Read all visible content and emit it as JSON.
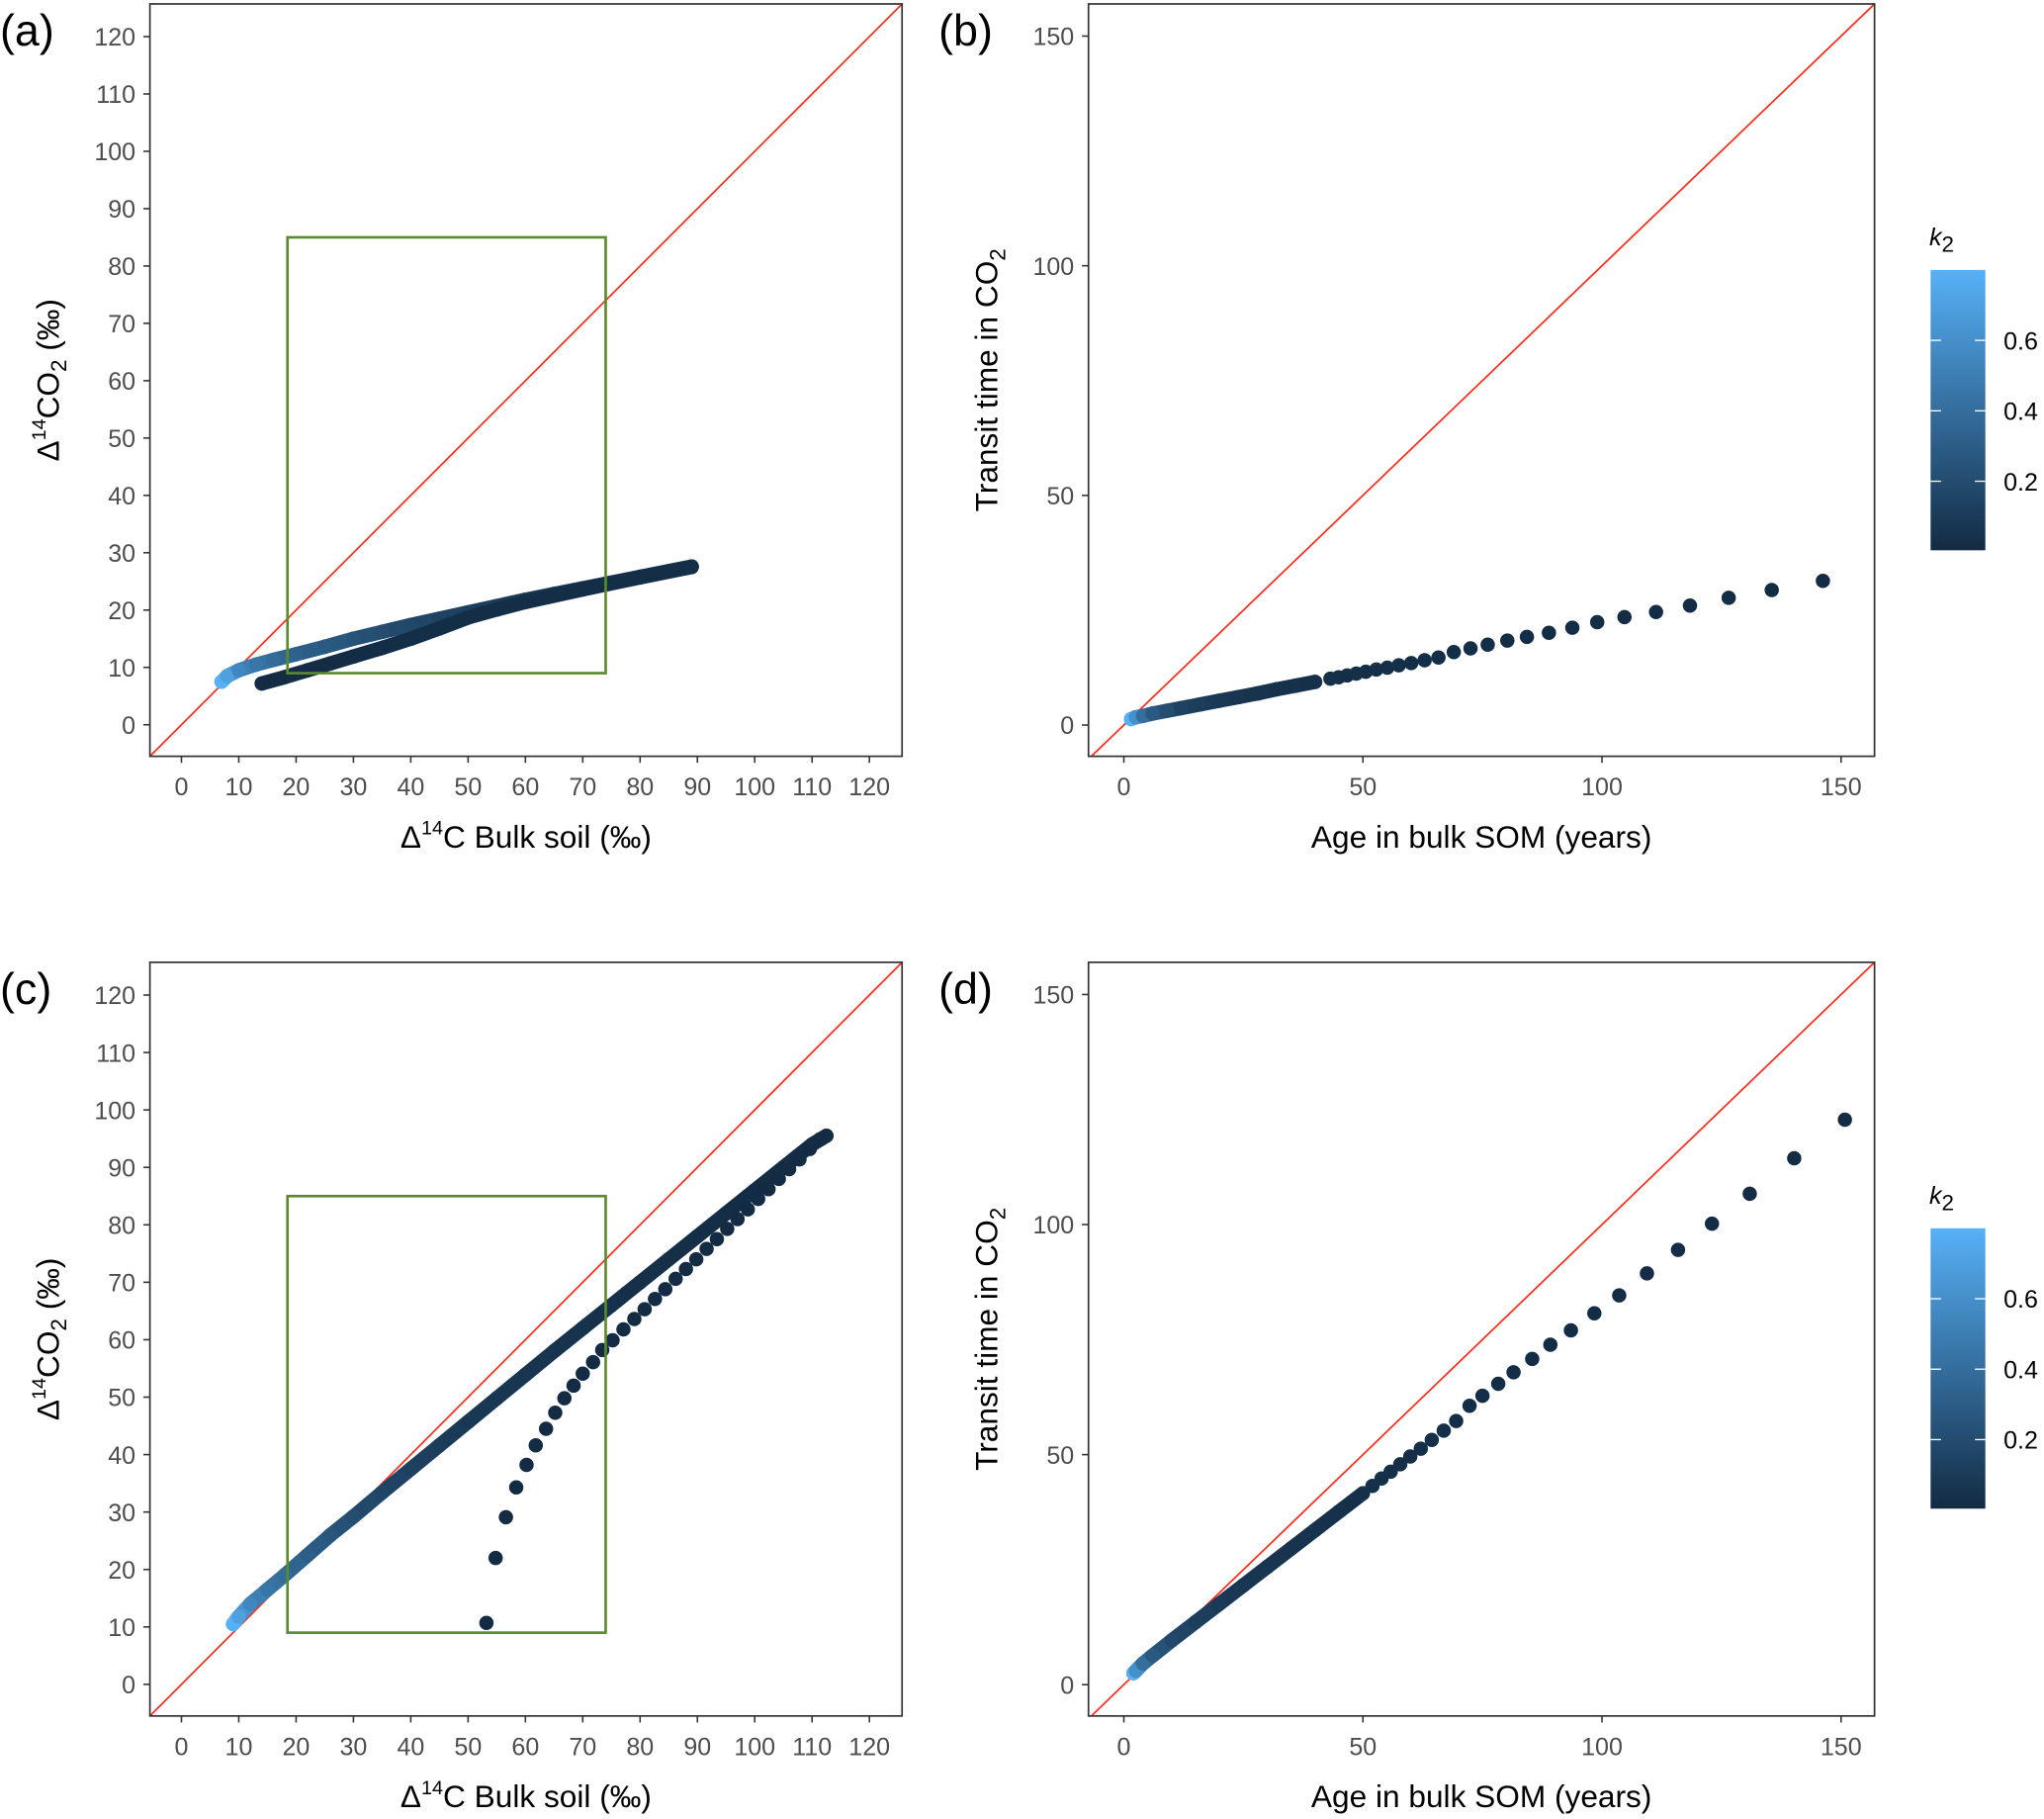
{
  "chart_data": [
    {
      "panel_label": "(a)",
      "type": "scatter",
      "xlabel": {
        "pre": "Δ",
        "sup": "14",
        "main": "C Bulk soil (‰)"
      },
      "ylabel": {
        "pre": "Δ",
        "sup": "14",
        "main": "CO",
        "sub": "2",
        "post": " (‰)"
      },
      "xlim": [
        -5.5,
        125.7
      ],
      "ylim": [
        -5.5,
        125.7
      ],
      "x_ticks": [
        "0",
        "10",
        "20",
        "30",
        "40",
        "50",
        "60",
        "70",
        "80",
        "90",
        "100",
        "110",
        "120"
      ],
      "y_ticks": [
        "0",
        "10",
        "20",
        "30",
        "40",
        "50",
        "60",
        "70",
        "80",
        "90",
        "100",
        "110",
        "120"
      ],
      "grid": false,
      "identity_line": {
        "shown": true,
        "color": "#FF2A1A"
      },
      "highlight_box": {
        "x": [
          18.5,
          74
        ],
        "y": [
          9,
          85
        ],
        "color": "#5A8A2E"
      },
      "color_by": "k2",
      "series": [
        {
          "band": true,
          "points": [
            [
              7,
              7.5,
              0.8
            ],
            [
              8,
              8.5,
              0.7
            ],
            [
              10,
              9.5,
              0.55
            ],
            [
              13,
              10.5,
              0.45
            ],
            [
              16,
              11.3,
              0.38
            ],
            [
              20,
              12.3,
              0.32
            ],
            [
              25,
              13.6,
              0.28
            ],
            [
              30,
              15,
              0.24
            ],
            [
              35,
              16.2,
              0.2
            ],
            [
              40,
              17.4,
              0.17
            ],
            [
              45,
              18.5,
              0.14
            ],
            [
              50,
              19.6,
              0.12
            ],
            [
              55,
              20.7,
              0.1
            ],
            [
              60,
              21.8,
              0.08
            ],
            [
              65,
              22.8,
              0.07
            ],
            [
              70,
              23.8,
              0.06
            ],
            [
              75,
              24.8,
              0.05
            ],
            [
              80,
              25.8,
              0.04
            ],
            [
              85,
              26.8,
              0.03
            ],
            [
              89,
              27.6,
              0.02
            ]
          ]
        },
        {
          "band": true,
          "points": [
            [
              14,
              7.2,
              0.005
            ],
            [
              18,
              8.3,
              0.006
            ],
            [
              22,
              9.5,
              0.008
            ],
            [
              26,
              10.7,
              0.01
            ],
            [
              30,
              11.9,
              0.012
            ],
            [
              35,
              13.4,
              0.014
            ],
            [
              40,
              15,
              0.016
            ],
            [
              45,
              16.8,
              0.018
            ],
            [
              50,
              18.7,
              0.019
            ],
            [
              55,
              20.1,
              0.02
            ],
            [
              60,
              21.4,
              0.02
            ],
            [
              70,
              23.6,
              0.02
            ],
            [
              80,
              25.7,
              0.02
            ],
            [
              89,
              27.5,
              0.02
            ]
          ]
        }
      ]
    },
    {
      "panel_label": "(b)",
      "type": "scatter",
      "xlabel": {
        "main": "Age in bulk SOM (years)"
      },
      "ylabel": {
        "main": "Transit time in CO",
        "sub": "2"
      },
      "xlim": [
        -7.4,
        157
      ],
      "ylim": [
        -6.8,
        157
      ],
      "x_ticks": [
        "0",
        "50",
        "100",
        "150"
      ],
      "y_ticks": [
        "0",
        "50",
        "100",
        "150"
      ],
      "grid": false,
      "identity_line": {
        "shown": true,
        "color": "#FF2A1A"
      },
      "color_by": "k2",
      "series": [
        {
          "band": true,
          "points": [
            [
              1.5,
              1.3,
              0.8
            ],
            [
              2.5,
              1.7,
              0.6
            ],
            [
              4,
              2,
              0.4
            ],
            [
              6,
              2.5,
              0.28
            ],
            [
              9,
              3.1,
              0.2
            ],
            [
              12,
              3.7,
              0.14
            ],
            [
              16,
              4.5,
              0.1
            ],
            [
              20,
              5.3,
              0.08
            ],
            [
              24,
              6.1,
              0.06
            ],
            [
              28,
              6.9,
              0.05
            ],
            [
              32,
              7.8,
              0.04
            ],
            [
              36,
              8.6,
              0.035
            ],
            [
              40,
              9.4,
              0.03
            ]
          ]
        },
        {
          "band": false,
          "points": [
            [
              43.2,
              10.1,
              0.028
            ],
            [
              44.9,
              10.4,
              0.027
            ],
            [
              46.7,
              10.8,
              0.026
            ],
            [
              48.6,
              11.2,
              0.025
            ],
            [
              50.6,
              11.6,
              0.024
            ],
            [
              52.8,
              12.1,
              0.023
            ],
            [
              55.1,
              12.5,
              0.022
            ],
            [
              57.5,
              13,
              0.021
            ],
            [
              60.1,
              13.5,
              0.02
            ],
            [
              62.9,
              14.1,
              0.019
            ],
            [
              65.8,
              14.7,
              0.018
            ],
            [
              69,
              15.9,
              0.017
            ],
            [
              72.5,
              16.7,
              0.016
            ],
            [
              76.1,
              17.5,
              0.015
            ],
            [
              80.2,
              18.4,
              0.014
            ],
            [
              84.3,
              19.2,
              0.013
            ],
            [
              88.9,
              20.1,
              0.012
            ],
            [
              93.8,
              21.2,
              0.011
            ],
            [
              99,
              22.4,
              0.01
            ],
            [
              104.7,
              23.5,
              0.009
            ],
            [
              111.3,
              24.6,
              0.008
            ],
            [
              118.4,
              26,
              0.007
            ],
            [
              126.5,
              27.7,
              0.006
            ],
            [
              135.5,
              29.4,
              0.005
            ],
            [
              146.2,
              31.4,
              0.004
            ]
          ]
        }
      ],
      "color_scale": {
        "title_main": "k",
        "title_sub": "2",
        "ticks": [
          "0.2",
          "0.4",
          "0.6"
        ],
        "tick_values": [
          0.2,
          0.4,
          0.6
        ],
        "range": [
          0.004,
          0.8
        ],
        "low": "#132B43",
        "high": "#56B1F7"
      }
    },
    {
      "panel_label": "(c)",
      "type": "scatter",
      "xlabel": {
        "pre": "Δ",
        "sup": "14",
        "main": "C Bulk soil (‰)"
      },
      "ylabel": {
        "pre": "Δ",
        "sup": "14",
        "main": "CO",
        "sub": "2",
        "post": " (‰)"
      },
      "xlim": [
        -5.5,
        125.7
      ],
      "ylim": [
        -5.5,
        125.7
      ],
      "x_ticks": [
        "0",
        "10",
        "20",
        "30",
        "40",
        "50",
        "60",
        "70",
        "80",
        "90",
        "100",
        "110",
        "120"
      ],
      "y_ticks": [
        "0",
        "10",
        "20",
        "30",
        "40",
        "50",
        "60",
        "70",
        "80",
        "90",
        "100",
        "110",
        "120"
      ],
      "grid": false,
      "identity_line": {
        "shown": true,
        "color": "#FF2A1A"
      },
      "highlight_box": {
        "x": [
          18.5,
          74
        ],
        "y": [
          9,
          85
        ],
        "color": "#5A8A2E"
      },
      "color_by": "k2",
      "series": [
        {
          "band": true,
          "points": [
            [
              9,
              10.5,
              0.8
            ],
            [
              10,
              11.8,
              0.7
            ],
            [
              12,
              14,
              0.55
            ],
            [
              15,
              16.5,
              0.45
            ],
            [
              18,
              19,
              0.38
            ],
            [
              22,
              22.5,
              0.3
            ],
            [
              26,
              26,
              0.25
            ],
            [
              30,
              29.2,
              0.2
            ],
            [
              35,
              33.4,
              0.16
            ],
            [
              40,
              37.5,
              0.13
            ],
            [
              45,
              41.6,
              0.1
            ],
            [
              50,
              45.7,
              0.08
            ],
            [
              55,
              49.8,
              0.07
            ],
            [
              60,
              53.9,
              0.06
            ],
            [
              65,
              58,
              0.05
            ],
            [
              70,
              62,
              0.04
            ],
            [
              75,
              66,
              0.035
            ],
            [
              80,
              70,
              0.03
            ],
            [
              85,
              74,
              0.025
            ],
            [
              90,
              78,
              0.02
            ],
            [
              95,
              82,
              0.015
            ],
            [
              100,
              86,
              0.012
            ],
            [
              105,
              90,
              0.01
            ],
            [
              110,
              94,
              0.008
            ],
            [
              112.5,
              95.5,
              0.006
            ]
          ]
        },
        {
          "band": false,
          "points": [
            [
              53.2,
              10.7,
              0.004
            ],
            [
              54.8,
              22,
              0.004
            ],
            [
              56.6,
              29.1,
              0.004
            ],
            [
              58.4,
              34.3,
              0.004
            ],
            [
              60.2,
              38.2,
              0.004
            ],
            [
              61.8,
              41.6,
              0.004
            ],
            [
              63.6,
              44.5,
              0.004
            ],
            [
              65.2,
              47.3,
              0.004
            ],
            [
              66.8,
              49.8,
              0.004
            ],
            [
              68.4,
              52,
              0.004
            ],
            [
              70,
              54.1,
              0.004
            ],
            [
              71.8,
              56.1,
              0.004
            ],
            [
              73.4,
              58.2,
              0.004
            ],
            [
              75.2,
              59.9,
              0.004
            ],
            [
              77.1,
              61.8,
              0.004
            ],
            [
              79,
              63.6,
              0.004
            ],
            [
              80.8,
              65.3,
              0.004
            ],
            [
              82.6,
              67.1,
              0.004
            ],
            [
              84.4,
              68.8,
              0.004
            ],
            [
              86.2,
              70.6,
              0.004
            ],
            [
              88,
              72.3,
              0.004
            ],
            [
              89.8,
              74,
              0.004
            ],
            [
              91.6,
              75.8,
              0.004
            ],
            [
              93.4,
              77.5,
              0.004
            ],
            [
              95.2,
              79.3,
              0.004
            ],
            [
              97,
              81,
              0.004
            ],
            [
              98.8,
              82.7,
              0.004
            ],
            [
              100.6,
              84.5,
              0.004
            ],
            [
              102.4,
              86.2,
              0.004
            ],
            [
              104.2,
              88,
              0.004
            ],
            [
              106,
              89.7,
              0.004
            ],
            [
              107.8,
              91.4,
              0.004
            ],
            [
              109.6,
              93.2,
              0.004
            ],
            [
              111.4,
              94.9,
              0.004
            ]
          ]
        }
      ]
    },
    {
      "panel_label": "(d)",
      "type": "scatter",
      "xlabel": {
        "main": "Age in bulk SOM (years)"
      },
      "ylabel": {
        "main": "Transit time in CO",
        "sub": "2"
      },
      "xlim": [
        -7.4,
        157
      ],
      "ylim": [
        -6.8,
        157
      ],
      "x_ticks": [
        "0",
        "50",
        "100",
        "150"
      ],
      "y_ticks": [
        "0",
        "50",
        "100",
        "150"
      ],
      "grid": false,
      "identity_line": {
        "shown": true,
        "color": "#FF2A1A"
      },
      "color_by": "k2",
      "series": [
        {
          "band": true,
          "points": [
            [
              2,
              2.5,
              0.8
            ],
            [
              2.5,
              3,
              0.6
            ],
            [
              4,
              4.6,
              0.4
            ],
            [
              6,
              6.3,
              0.28
            ],
            [
              10,
              9.6,
              0.18
            ],
            [
              15,
              13.6,
              0.12
            ],
            [
              20,
              17.6,
              0.09
            ],
            [
              25,
              21.6,
              0.07
            ],
            [
              30,
              25.6,
              0.06
            ],
            [
              35,
              29.6,
              0.05
            ],
            [
              40,
              33.6,
              0.04
            ],
            [
              45,
              37.6,
              0.035
            ],
            [
              50,
              41.6,
              0.03
            ]
          ]
        },
        {
          "band": false,
          "points": [
            [
              52,
              43.2,
              0.028
            ],
            [
              53.9,
              44.8,
              0.027
            ],
            [
              55.8,
              46.3,
              0.026
            ],
            [
              57.8,
              47.9,
              0.025
            ],
            [
              59.9,
              49.6,
              0.024
            ],
            [
              62.1,
              51.3,
              0.023
            ],
            [
              64.4,
              53.2,
              0.022
            ],
            [
              66.9,
              55.2,
              0.021
            ],
            [
              69.5,
              57.3,
              0.02
            ],
            [
              72.3,
              60.6,
              0.019
            ],
            [
              75,
              62.8,
              0.018
            ],
            [
              78.3,
              65.4,
              0.017
            ],
            [
              81.5,
              67.9,
              0.016
            ],
            [
              85.4,
              70.8,
              0.015
            ],
            [
              89.2,
              73.9,
              0.014
            ],
            [
              93.5,
              77,
              0.013
            ],
            [
              98.4,
              80.7,
              0.012
            ],
            [
              103.6,
              84.6,
              0.011
            ],
            [
              109.4,
              89.4,
              0.01
            ],
            [
              115.9,
              94.5,
              0.009
            ],
            [
              123,
              100.2,
              0.008
            ],
            [
              130.9,
              106.7,
              0.007
            ],
            [
              140.2,
              114.4,
              0.006
            ],
            [
              150.8,
              122.8,
              0.005
            ]
          ]
        }
      ],
      "color_scale": {
        "title_main": "k",
        "title_sub": "2",
        "ticks": [
          "0.2",
          "0.4",
          "0.6"
        ],
        "tick_values": [
          0.2,
          0.4,
          0.6
        ],
        "range": [
          0.004,
          0.8
        ],
        "low": "#132B43",
        "high": "#56B1F7"
      }
    }
  ]
}
